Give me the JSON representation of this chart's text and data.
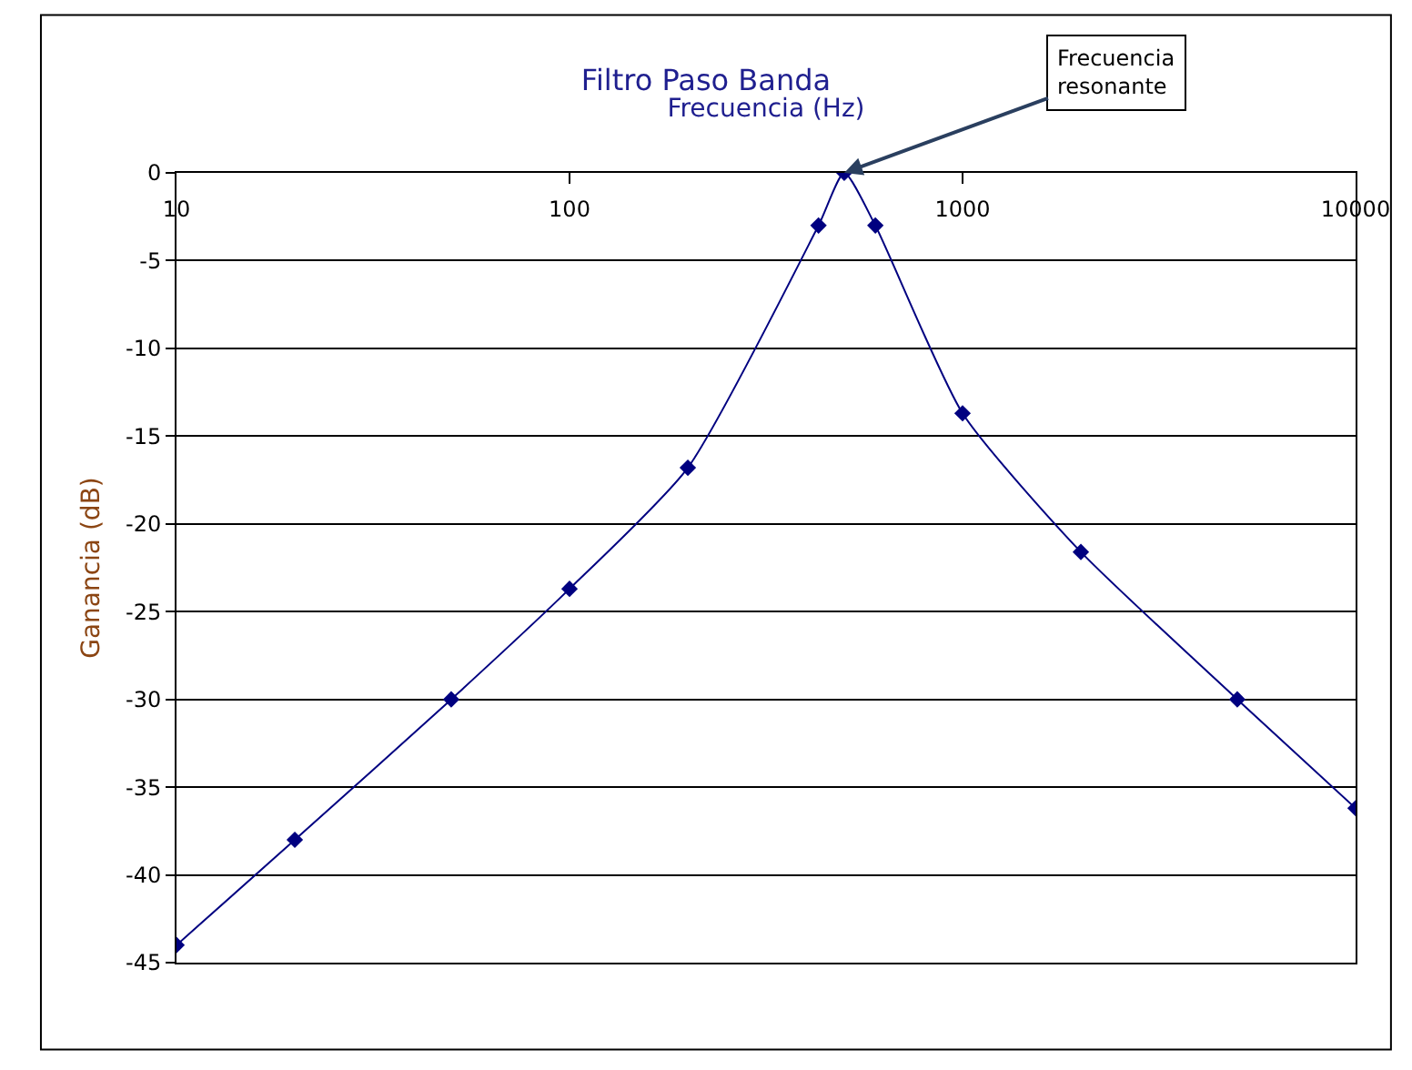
{
  "chart_data": {
    "type": "line",
    "title": "Filtro Paso Banda",
    "xlabel": "Frecuencia (Hz)",
    "ylabel": "Ganancia (dB)",
    "x": [
      10,
      20,
      50,
      100,
      200,
      430,
      500,
      600,
      1000,
      2000,
      5000,
      10000
    ],
    "series": [
      {
        "color": "#000080",
        "values": [
          -44,
          -38,
          -30,
          -23.7,
          -16.8,
          -3,
          0,
          -3,
          -13.7,
          -21.6,
          -30,
          -36.2
        ]
      }
    ],
    "log": "x",
    "xlim": [
      10,
      10000
    ],
    "xticks": [
      10,
      100,
      1000,
      10000
    ],
    "ylim": [
      -45,
      0
    ],
    "yticks": [
      0,
      -5,
      -10,
      -15,
      -20,
      -25,
      -30,
      -35,
      -40,
      -45
    ],
    "grid": "y",
    "marker": "diamond",
    "line_style": "solid",
    "annotations": [
      {
        "text": "Frecuencia\nresonante",
        "x": 500,
        "y": 0
      }
    ]
  }
}
